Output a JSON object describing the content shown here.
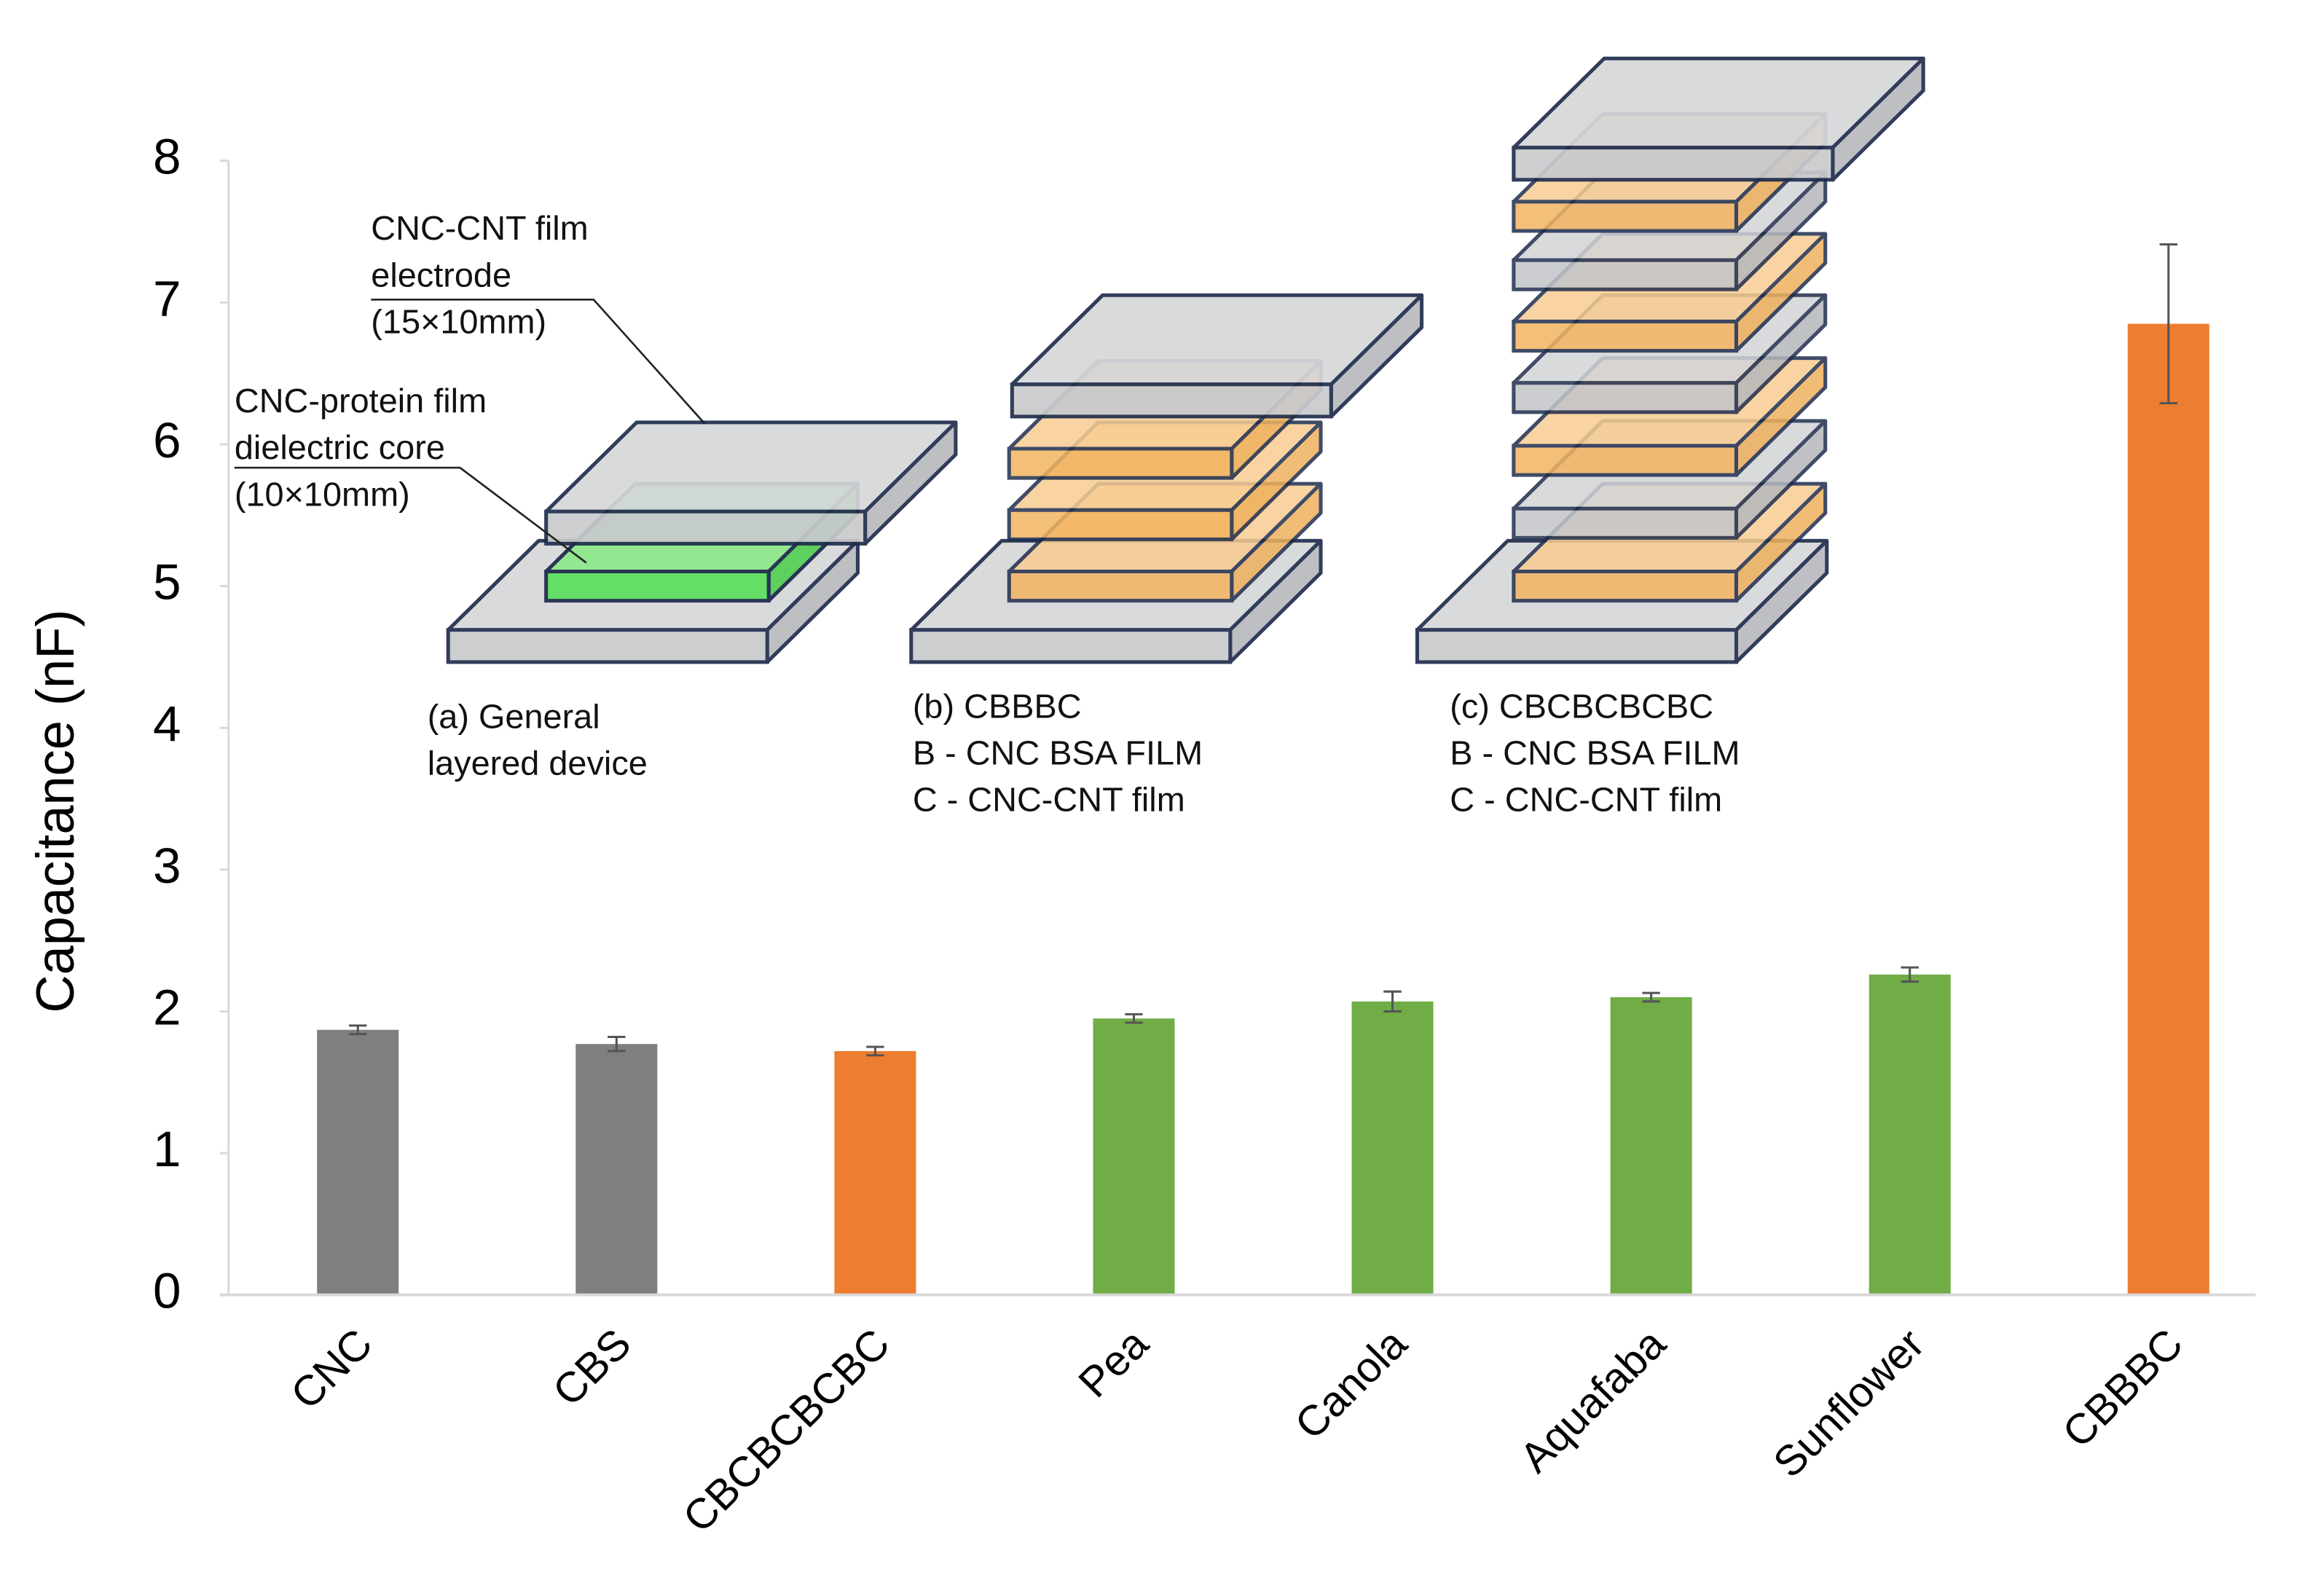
{
  "chart_data": {
    "type": "bar",
    "y_label": "Capacitance (nF)",
    "categories": [
      "CNC",
      "CBS",
      "CBCBCBCBC",
      "Pea",
      "Canola",
      "Aquafaba",
      "Sunflower",
      "CBBBC"
    ],
    "values": [
      1.87,
      1.77,
      1.72,
      1.95,
      2.07,
      2.1,
      2.26,
      6.85
    ],
    "errors": [
      0.03,
      0.05,
      0.03,
      0.03,
      0.07,
      0.03,
      0.05,
      0.56
    ],
    "colors": [
      "#7f7f7f",
      "#7f7f7f",
      "#ed7d31",
      "#70ad47",
      "#70ad47",
      "#70ad47",
      "#70ad47",
      "#ed7d31"
    ],
    "ylim": [
      0,
      8
    ],
    "yticks": [
      0,
      1,
      2,
      3,
      4,
      5,
      6,
      7,
      8
    ],
    "grid": false,
    "annotations": [
      [
        "CNC-CNT film",
        "electrode",
        "(15×10mm)"
      ],
      [
        "CNC-protein film",
        "dielectric core",
        "(10×10mm)"
      ],
      [
        "(a) General",
        "layered device"
      ],
      [
        "(b) CBBBC",
        "B - CNC BSA FILM",
        "C - CNC-CNT film"
      ],
      [
        "(c) CBCBCBCBC",
        "B - CNC BSA FILM",
        "C - CNC-CNT film"
      ]
    ]
  }
}
